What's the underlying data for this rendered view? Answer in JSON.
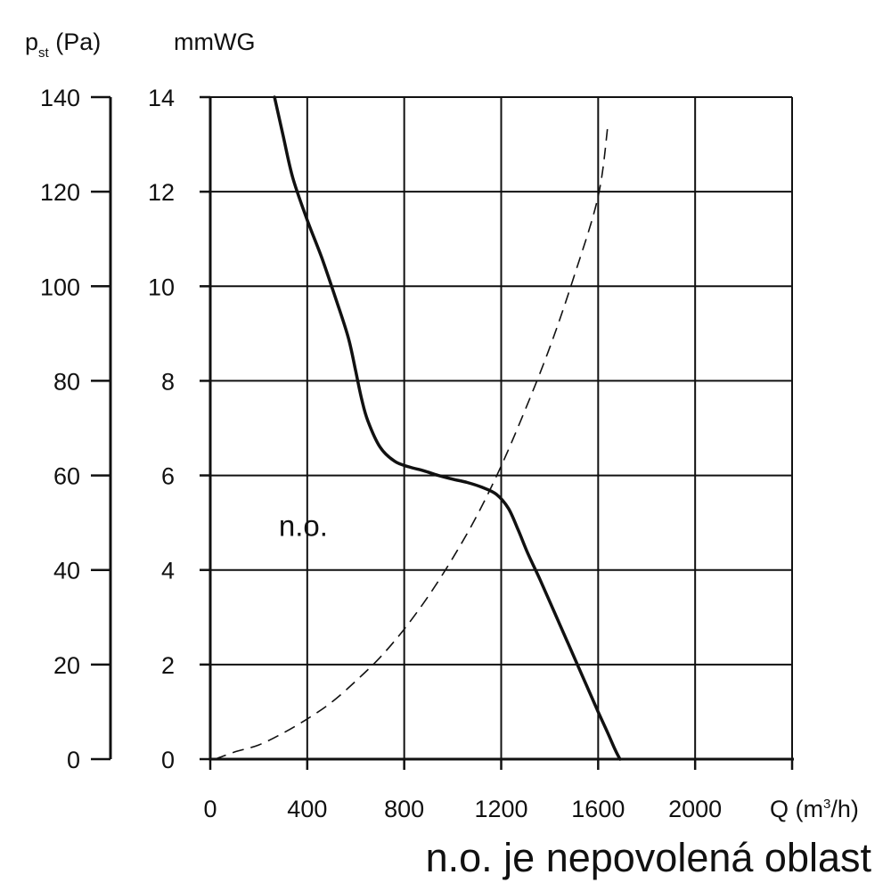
{
  "chart_data": {
    "type": "line",
    "title": "",
    "x_axis": {
      "label_main": "Q (m",
      "label_sup": "3",
      "label_end": "/h)",
      "ticks": [
        0,
        400,
        800,
        1200,
        1600,
        2000
      ],
      "range": [
        0,
        2400
      ]
    },
    "y_axis_pa": {
      "label_main": "p",
      "label_sub": "st",
      "label_end": " (Pa)",
      "ticks": [
        0,
        20,
        40,
        60,
        80,
        100,
        120,
        140
      ],
      "range": [
        0,
        140
      ]
    },
    "y_axis_mmwg": {
      "label": "mmWG",
      "ticks": [
        0,
        2,
        4,
        6,
        8,
        10,
        12,
        14
      ],
      "range": [
        0,
        14
      ]
    },
    "grid": true,
    "series": [
      {
        "style": "solid",
        "color": "#111111",
        "x": [
          265,
          300,
          340,
          400,
          460,
          520,
          570,
          600,
          625,
          650,
          700,
          760,
          820,
          880,
          940,
          1000,
          1060,
          1120,
          1180,
          1230,
          1270,
          1310,
          1360,
          1420,
          1480,
          1540,
          1600,
          1640,
          1670,
          1690
        ],
        "y": [
          14.0,
          13.2,
          12.3,
          11.4,
          10.6,
          9.7,
          8.9,
          8.2,
          7.6,
          7.15,
          6.6,
          6.3,
          6.18,
          6.1,
          6.0,
          5.92,
          5.85,
          5.75,
          5.6,
          5.3,
          4.85,
          4.35,
          3.8,
          3.1,
          2.4,
          1.7,
          1.0,
          0.55,
          0.2,
          0.0
        ]
      },
      {
        "style": "dashed",
        "color": "#111111",
        "x": [
          20,
          100,
          200,
          300,
          400,
          500,
          600,
          700,
          800,
          900,
          1000,
          1100,
          1200,
          1300,
          1400,
          1500,
          1600,
          1640
        ],
        "y": [
          0.0,
          0.15,
          0.3,
          0.55,
          0.85,
          1.2,
          1.65,
          2.15,
          2.75,
          3.45,
          4.25,
          5.15,
          6.2,
          7.4,
          8.7,
          10.2,
          11.9,
          13.4
        ]
      }
    ],
    "annotations": [
      {
        "text": "n.o.",
        "x": 290,
        "y": 4.8
      }
    ]
  },
  "footnote": "n.o. je nepovolená oblast"
}
